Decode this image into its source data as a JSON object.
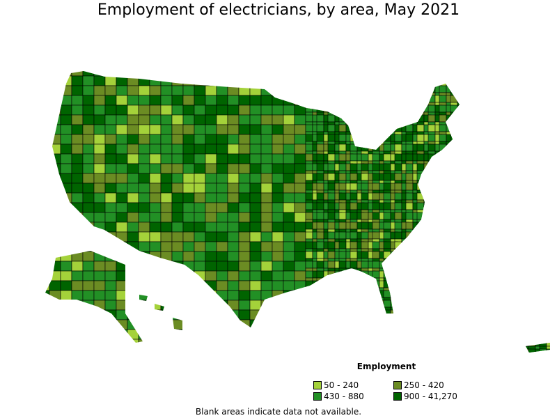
{
  "title": "Employment of electricians, by area, May 2021",
  "legend": {
    "title": "Employment",
    "items": [
      {
        "label": "50 - 240",
        "color": "#a4d23a"
      },
      {
        "label": "250 - 420",
        "color": "#6b8c23"
      },
      {
        "label": "430 - 880",
        "color": "#229025"
      },
      {
        "label": "900 - 41,270",
        "color": "#006400"
      }
    ]
  },
  "note": "Blank areas indicate data not available."
}
